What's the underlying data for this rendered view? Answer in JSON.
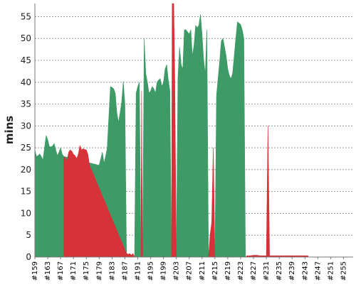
{
  "chart_data": {
    "type": "area",
    "xlabel": "",
    "ylabel": "mins",
    "ylim": [
      0,
      58
    ],
    "yticks": [
      0,
      5,
      10,
      15,
      20,
      25,
      30,
      35,
      40,
      45,
      50,
      55
    ],
    "x_tick_labels": [
      "#159",
      "#163",
      "#167",
      "#171",
      "#175",
      "#179",
      "#183",
      "#187",
      "#191",
      "#195",
      "#199",
      "#203",
      "#207",
      "#211",
      "#215",
      "#219",
      "#223",
      "#227",
      "#231",
      "#235",
      "#239",
      "#243",
      "#247",
      "#251",
      "#255"
    ],
    "x_tick_builds": [
      159,
      163,
      167,
      171,
      175,
      179,
      183,
      187,
      191,
      195,
      199,
      203,
      207,
      211,
      215,
      219,
      223,
      227,
      231,
      235,
      239,
      243,
      247,
      251,
      255
    ],
    "x_range": [
      159,
      258
    ],
    "grid": true,
    "series": [
      {
        "status": "success",
        "color": "#3e9a66",
        "points": [
          [
            159,
            24.5
          ],
          [
            159.5,
            23
          ],
          [
            160,
            23.2
          ],
          [
            160.5,
            23.6
          ],
          [
            161,
            23
          ],
          [
            161.5,
            22.2
          ],
          [
            162,
            25
          ],
          [
            162.5,
            27.8
          ],
          [
            163,
            26.8
          ],
          [
            163.5,
            25.3
          ],
          [
            164,
            25.2
          ],
          [
            164.5,
            25.4
          ],
          [
            165,
            26
          ],
          [
            165.5,
            24.5
          ],
          [
            166,
            23.2
          ],
          [
            166.5,
            24
          ],
          [
            167,
            25
          ],
          [
            167.5,
            23.5
          ],
          [
            168,
            23
          ],
          [
            179,
            21
          ],
          [
            179.5,
            22.5
          ],
          [
            180,
            24
          ],
          [
            180.5,
            21.5
          ],
          [
            181,
            23
          ],
          [
            181.5,
            25
          ],
          [
            182,
            32
          ],
          [
            182.5,
            39
          ],
          [
            183,
            38.8
          ],
          [
            183.5,
            38.5
          ],
          [
            184,
            37.5
          ],
          [
            184.5,
            33
          ],
          [
            185,
            30.8
          ],
          [
            185.5,
            33
          ],
          [
            186,
            35.5
          ],
          [
            186.5,
            40.2
          ],
          [
            187,
            35
          ],
          [
            187.5,
            0.8
          ],
          [
            190,
            0
          ],
          [
            190.5,
            37.5
          ],
          [
            191,
            39
          ],
          [
            191.5,
            40
          ],
          [
            192,
            0
          ],
          [
            192.5,
            0
          ],
          [
            193,
            50
          ],
          [
            193.5,
            42
          ],
          [
            194,
            40
          ],
          [
            194.5,
            37.5
          ],
          [
            195,
            38
          ],
          [
            195.5,
            39
          ],
          [
            196,
            38.5
          ],
          [
            196.5,
            37.5
          ],
          [
            197,
            40
          ],
          [
            197.5,
            40.5
          ],
          [
            198,
            40.8
          ],
          [
            198.5,
            39
          ],
          [
            199,
            40
          ],
          [
            199.5,
            43
          ],
          [
            200,
            44
          ],
          [
            200.5,
            40.5
          ],
          [
            201,
            38
          ],
          [
            201.5,
            0
          ],
          [
            203,
            0
          ],
          [
            203.5,
            41
          ],
          [
            204,
            48
          ],
          [
            204.5,
            44
          ],
          [
            205,
            43
          ],
          [
            205.5,
            52
          ],
          [
            206,
            52
          ],
          [
            206.5,
            51.5
          ],
          [
            207,
            51
          ],
          [
            207.5,
            52
          ],
          [
            208,
            46
          ],
          [
            208.5,
            48.5
          ],
          [
            209,
            53
          ],
          [
            209.5,
            52.5
          ],
          [
            210,
            53
          ],
          [
            210.5,
            55.5
          ],
          [
            211,
            51
          ],
          [
            211.5,
            45
          ],
          [
            212,
            42
          ],
          [
            212.5,
            52
          ],
          [
            213,
            0
          ],
          [
            215,
            0
          ],
          [
            215.5,
            37
          ],
          [
            216,
            41
          ],
          [
            216.5,
            45
          ],
          [
            217,
            49.5
          ],
          [
            217.5,
            50
          ],
          [
            218,
            48
          ],
          [
            218.5,
            46
          ],
          [
            219,
            43
          ],
          [
            219.5,
            41.5
          ],
          [
            220,
            40.8
          ],
          [
            220.5,
            42
          ],
          [
            221,
            46
          ],
          [
            221.5,
            50
          ],
          [
            222,
            53.8
          ],
          [
            222.5,
            53.5
          ],
          [
            223,
            53.2
          ],
          [
            223.5,
            52
          ],
          [
            224,
            50
          ],
          [
            224.5,
            0
          ]
        ]
      },
      {
        "status": "failure",
        "color": "#d5323a",
        "points": [
          [
            168,
            23
          ],
          [
            168.5,
            22.5
          ],
          [
            169,
            22
          ],
          [
            169.5,
            24
          ],
          [
            170,
            24.5
          ],
          [
            170.5,
            24.2
          ],
          [
            171,
            23.5
          ],
          [
            171.5,
            23.2
          ],
          [
            172,
            22.5
          ],
          [
            172.5,
            23.5
          ],
          [
            173,
            25.5
          ],
          [
            173.5,
            24.5
          ],
          [
            174,
            24.8
          ],
          [
            174.5,
            24.6
          ],
          [
            175,
            24.5
          ],
          [
            175.5,
            23.5
          ],
          [
            176,
            21
          ],
          [
            187.5,
            0.8
          ],
          [
            188,
            0.6
          ],
          [
            188.5,
            0.8
          ],
          [
            189,
            0.4
          ],
          [
            189.5,
            0.8
          ],
          [
            190,
            0
          ],
          [
            192,
            0
          ],
          [
            192.2,
            38
          ],
          [
            192.5,
            0
          ],
          [
            201.5,
            0
          ],
          [
            201.7,
            60
          ],
          [
            202.2,
            60
          ],
          [
            202.5,
            42
          ],
          [
            203,
            0
          ],
          [
            213,
            0
          ],
          [
            213.5,
            5
          ],
          [
            214,
            8
          ],
          [
            214.5,
            25
          ],
          [
            215,
            0
          ],
          [
            224.5,
            0
          ],
          [
            225,
            0.3
          ],
          [
            226,
            0.3
          ],
          [
            227,
            0.4
          ],
          [
            228,
            0.4
          ],
          [
            229,
            0.3
          ],
          [
            230,
            0.3
          ],
          [
            231,
            0.3
          ],
          [
            231.5,
            30
          ],
          [
            232,
            0.3
          ],
          [
            233,
            0.3
          ],
          [
            234,
            0.3
          ],
          [
            235,
            0.3
          ],
          [
            236,
            0.3
          ],
          [
            237,
            0.3
          ],
          [
            238,
            0.3
          ],
          [
            239,
            0.3
          ],
          [
            240,
            0.3
          ],
          [
            241,
            0.3
          ],
          [
            242,
            0.3
          ],
          [
            243,
            0.3
          ],
          [
            244,
            0.3
          ]
        ]
      }
    ]
  }
}
